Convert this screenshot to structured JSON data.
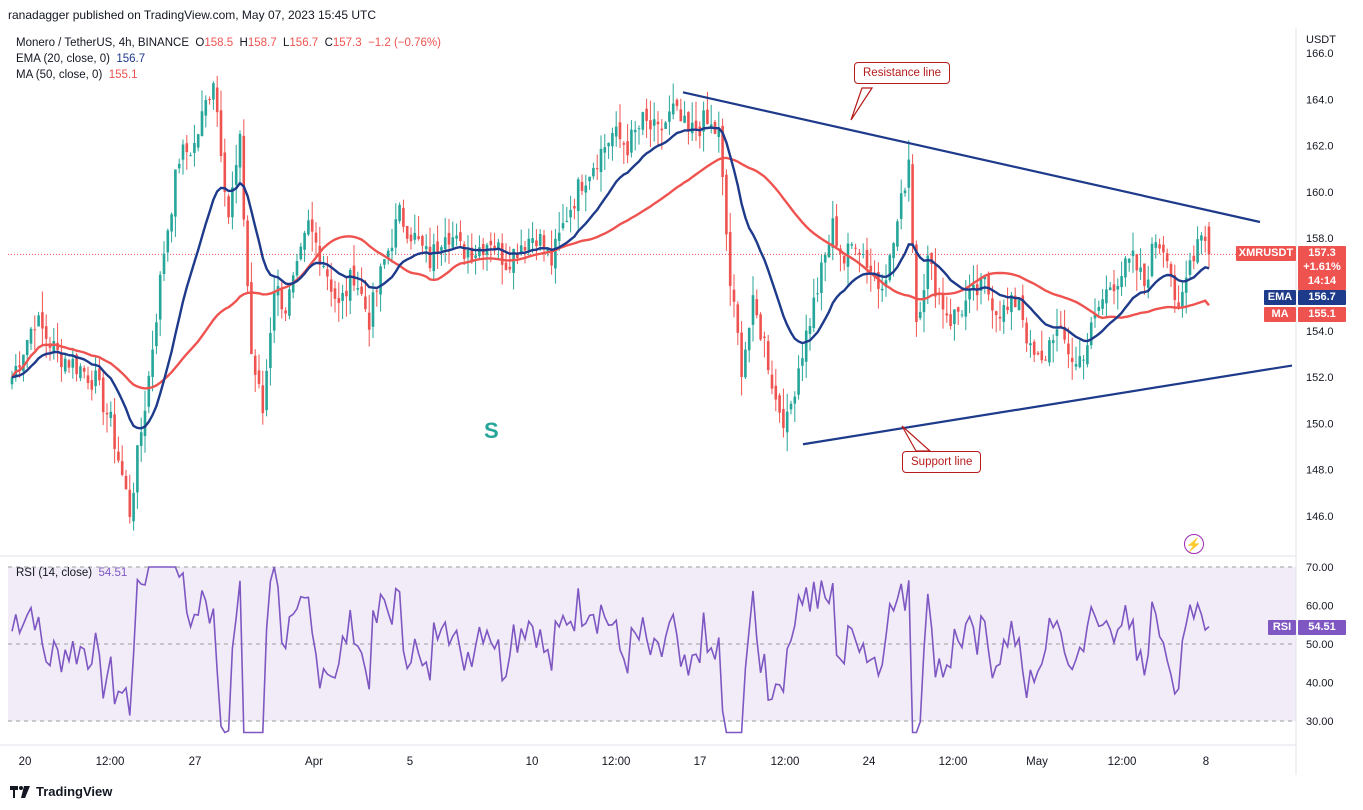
{
  "header": {
    "published": "ranadagger published on TradingView.com, May 07, 2023 15:45 UTC"
  },
  "legend": {
    "symbol": "Monero / TetherUS, 4h, BINANCE",
    "o_label": "O",
    "o": "158.5",
    "h_label": "H",
    "h": "158.7",
    "l_label": "L",
    "l": "156.7",
    "c_label": "C",
    "c": "157.3",
    "change": "−1.2 (−0.76%)",
    "ema_label": "EMA (20, close, 0)",
    "ema_value": "156.7",
    "ma_label": "MA (50, close, 0)",
    "ma_value": "155.1"
  },
  "price_axis": {
    "currency": "USDT",
    "ticks": [
      "146.0",
      "148.0",
      "150.0",
      "152.0",
      "154.0",
      "156.0",
      "158.0",
      "160.0",
      "162.0",
      "164.0",
      "166.0"
    ]
  },
  "price_tags": {
    "symbol": "XMRUSDT",
    "price": "157.3",
    "change_pct": "+1.61%",
    "countdown": "14:14",
    "ema_label": "EMA",
    "ema": "156.7",
    "ma_label": "MA",
    "ma": "155.1"
  },
  "annotations": {
    "resistance": "Resistance line",
    "support": "Support line",
    "pattern": "S"
  },
  "rsi": {
    "label": "RSI (14, close)",
    "value": "54.51",
    "tag_label": "RSI",
    "ticks": [
      "30.00",
      "40.00",
      "50.00",
      "60.00",
      "70.00"
    ]
  },
  "time_axis": {
    "labels": [
      "20",
      "12:00",
      "27",
      "Apr",
      "5",
      "10",
      "12:00",
      "17",
      "12:00",
      "24",
      "12:00",
      "May",
      "12:00",
      "8"
    ]
  },
  "footer": {
    "brand": "TradingView"
  },
  "colors": {
    "up": "#26a69a",
    "down": "#ef5350",
    "ema": "#1e3a8a",
    "ma": "#ef5350",
    "trendline": "#1e3a8a",
    "rsi": "#7e57c2"
  },
  "chart_data": {
    "type": "candlestick",
    "title": "Monero / TetherUS, 4h, BINANCE",
    "y_range": [
      145,
      166.5
    ],
    "trendlines": [
      {
        "name": "Resistance line",
        "points": [
          [
            "Apr 15",
            164.3
          ],
          [
            "May 08",
            158.7
          ]
        ]
      },
      {
        "name": "Support line",
        "points": [
          [
            "Apr 21",
            149.1
          ],
          [
            "May 08",
            152.5
          ]
        ]
      }
    ],
    "last": {
      "open": 158.5,
      "high": 158.7,
      "low": 156.7,
      "close": 157.3
    },
    "ema20_last": 156.7,
    "ma50_last": 155.1,
    "rsi_last": 54.51,
    "rsi_range": [
      25,
      72
    ],
    "anchors": [
      [
        0,
        152.0
      ],
      [
        6,
        154.5
      ],
      [
        12,
        153.0
      ],
      [
        18,
        152.4
      ],
      [
        22,
        151.8
      ],
      [
        26,
        150.0
      ],
      [
        31,
        146.2
      ],
      [
        36,
        152.0
      ],
      [
        40,
        157.5
      ],
      [
        44,
        161.5
      ],
      [
        48,
        162.0
      ],
      [
        53,
        165.0
      ],
      [
        57,
        159.0
      ],
      [
        60,
        162.0
      ],
      [
        63,
        153.0
      ],
      [
        66,
        150.5
      ],
      [
        69,
        156.0
      ],
      [
        72,
        155.0
      ],
      [
        75,
        156.5
      ],
      [
        78,
        158.5
      ],
      [
        82,
        157.0
      ],
      [
        86,
        155.0
      ],
      [
        90,
        156.5
      ],
      [
        94,
        154.5
      ],
      [
        98,
        157.0
      ],
      [
        102,
        159.0
      ],
      [
        106,
        158.0
      ],
      [
        110,
        157.0
      ],
      [
        114,
        158.5
      ],
      [
        118,
        157.5
      ],
      [
        122,
        157.5
      ],
      [
        126,
        158.0
      ],
      [
        130,
        157.0
      ],
      [
        134,
        157.8
      ],
      [
        138,
        158.2
      ],
      [
        142,
        157.0
      ],
      [
        146,
        159.0
      ],
      [
        150,
        160.5
      ],
      [
        154,
        161.5
      ],
      [
        158,
        162.5
      ],
      [
        162,
        162.0
      ],
      [
        166,
        163.0
      ],
      [
        170,
        162.5
      ],
      [
        174,
        163.5
      ],
      [
        178,
        162.5
      ],
      [
        182,
        163.0
      ],
      [
        186,
        162.5
      ],
      [
        189,
        156.0
      ],
      [
        192,
        152.5
      ],
      [
        195,
        155.0
      ],
      [
        198,
        153.5
      ],
      [
        201,
        151.0
      ],
      [
        204,
        150.0
      ],
      [
        207,
        152.5
      ],
      [
        210,
        154.5
      ],
      [
        213,
        156.5
      ],
      [
        216,
        158.5
      ],
      [
        219,
        157.0
      ],
      [
        222,
        158.0
      ],
      [
        225,
        157.0
      ],
      [
        228,
        156.0
      ],
      [
        231,
        157.0
      ],
      [
        234,
        159.5
      ],
      [
        236,
        161.5
      ],
      [
        238,
        154.5
      ],
      [
        241,
        157.0
      ],
      [
        244,
        155.5
      ],
      [
        247,
        154.5
      ],
      [
        250,
        155.0
      ],
      [
        253,
        155.5
      ],
      [
        256,
        156.0
      ],
      [
        259,
        155.0
      ],
      [
        262,
        154.8
      ],
      [
        265,
        155.5
      ],
      [
        268,
        153.0
      ],
      [
        271,
        152.5
      ],
      [
        274,
        154.0
      ],
      [
        277,
        153.5
      ],
      [
        280,
        152.5
      ],
      [
        283,
        153.5
      ],
      [
        286,
        155.0
      ],
      [
        289,
        156.0
      ],
      [
        292,
        156.5
      ],
      [
        295,
        157.0
      ],
      [
        298,
        156.0
      ],
      [
        301,
        158.0
      ],
      [
        304,
        157.5
      ],
      [
        307,
        154.5
      ],
      [
        310,
        157.0
      ],
      [
        313,
        158.5
      ],
      [
        315,
        157.3
      ]
    ]
  }
}
